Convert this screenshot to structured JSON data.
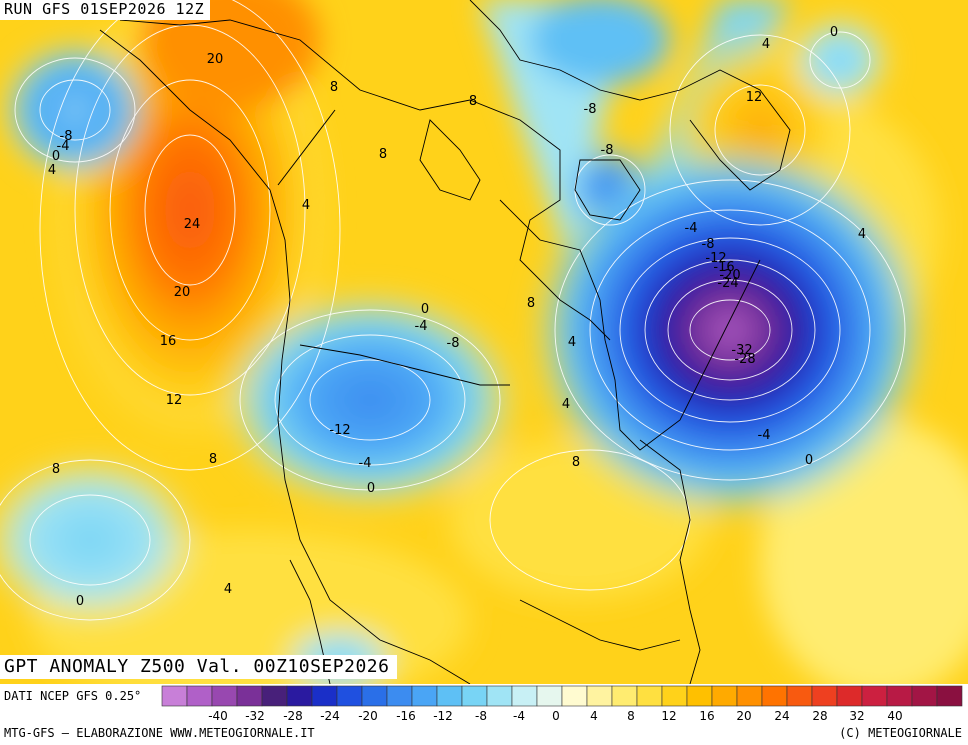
{
  "header": {
    "run_text": "RUN GFS 01SEP2026 12Z",
    "title_text": "GPT ANOMALY Z500 Val. 00Z10SEP2026"
  },
  "footer": {
    "data_source": "DATI NCEP GFS 0.25°",
    "credit_left": "MTG-GFS – ELABORAZIONE WWW.METEOGIORNALE.IT",
    "credit_right": "(C) METEOGIORNALE"
  },
  "legend": {
    "colors": [
      "#c87fd8",
      "#b060c8",
      "#9848b0",
      "#7a3098",
      "#48207a",
      "#2a1aa0",
      "#1a2fc8",
      "#1f50e0",
      "#2a6fe8",
      "#3c8cf0",
      "#4aa5f5",
      "#5ec0f5",
      "#78d4f5",
      "#a0e4f5",
      "#c8f0f5",
      "#e6f7ee",
      "#fffbd0",
      "#fff3a0",
      "#ffec70",
      "#ffe040",
      "#ffd21a",
      "#ffc000",
      "#ffaa00",
      "#ff9000",
      "#ff7300",
      "#f85a10",
      "#ee4020",
      "#dd2a2a",
      "#cc2040",
      "#b81a45",
      "#a21545",
      "#8a1040"
    ],
    "tick_labels": [
      "-40",
      "-32",
      "-28",
      "-24",
      "-20",
      "-16",
      "-12",
      "-8",
      "-4",
      "0",
      "4",
      "8",
      "12",
      "16",
      "20",
      "24",
      "28",
      "32",
      "40"
    ]
  },
  "map": {
    "contour_labels": [
      "20",
      "24",
      "20",
      "16",
      "12",
      "8",
      "8",
      "8",
      "8",
      "4",
      "8",
      "4",
      "4",
      "8",
      "12",
      "4",
      "0",
      "-8",
      "-4",
      "0",
      "4",
      "-8",
      "-8",
      "-4",
      "-8",
      "-12",
      "-16",
      "-20",
      "-24",
      "-32",
      "-28",
      "-4",
      "0",
      "0",
      "-4",
      "-8",
      "-12",
      "-4",
      "0",
      "8",
      "0",
      "4",
      "4"
    ]
  }
}
